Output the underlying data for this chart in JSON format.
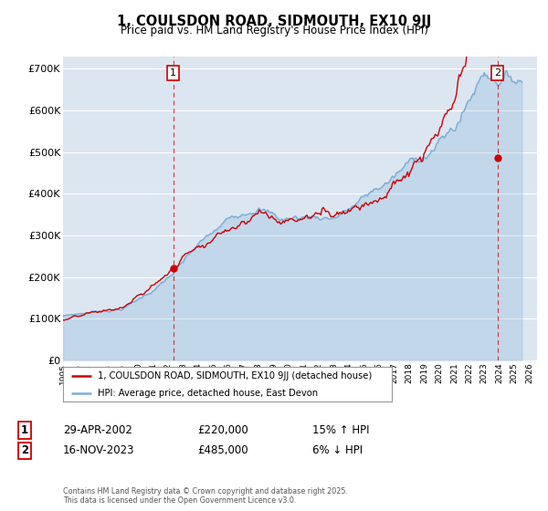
{
  "title": "1, COULSDON ROAD, SIDMOUTH, EX10 9JJ",
  "subtitle": "Price paid vs. HM Land Registry's House Price Index (HPI)",
  "ylabel_ticks": [
    "£0",
    "£100K",
    "£200K",
    "£300K",
    "£400K",
    "£500K",
    "£600K",
    "£700K"
  ],
  "ytick_vals": [
    0,
    100000,
    200000,
    300000,
    400000,
    500000,
    600000,
    700000
  ],
  "ylim": [
    0,
    730000
  ],
  "xlim_start": 1995.0,
  "xlim_end": 2026.5,
  "red_color": "#cc0000",
  "blue_color": "#7aaed6",
  "bg_color": "#dce6f1",
  "grid_color": "#ffffff",
  "vline1_x": 2002.33,
  "vline2_x": 2023.88,
  "marker1_x": 2002.33,
  "marker1_y": 220000,
  "marker2_x": 2023.88,
  "marker2_y": 485000,
  "legend_label_red": "1, COULSDON ROAD, SIDMOUTH, EX10 9JJ (detached house)",
  "legend_label_blue": "HPI: Average price, detached house, East Devon",
  "annot1_label": "1",
  "annot2_label": "2",
  "table_row1": [
    "1",
    "29-APR-2002",
    "£220,000",
    "15% ↑ HPI"
  ],
  "table_row2": [
    "2",
    "16-NOV-2023",
    "£485,000",
    "6% ↓ HPI"
  ],
  "footnote": "Contains HM Land Registry data © Crown copyright and database right 2025.\nThis data is licensed under the Open Government Licence v3.0."
}
